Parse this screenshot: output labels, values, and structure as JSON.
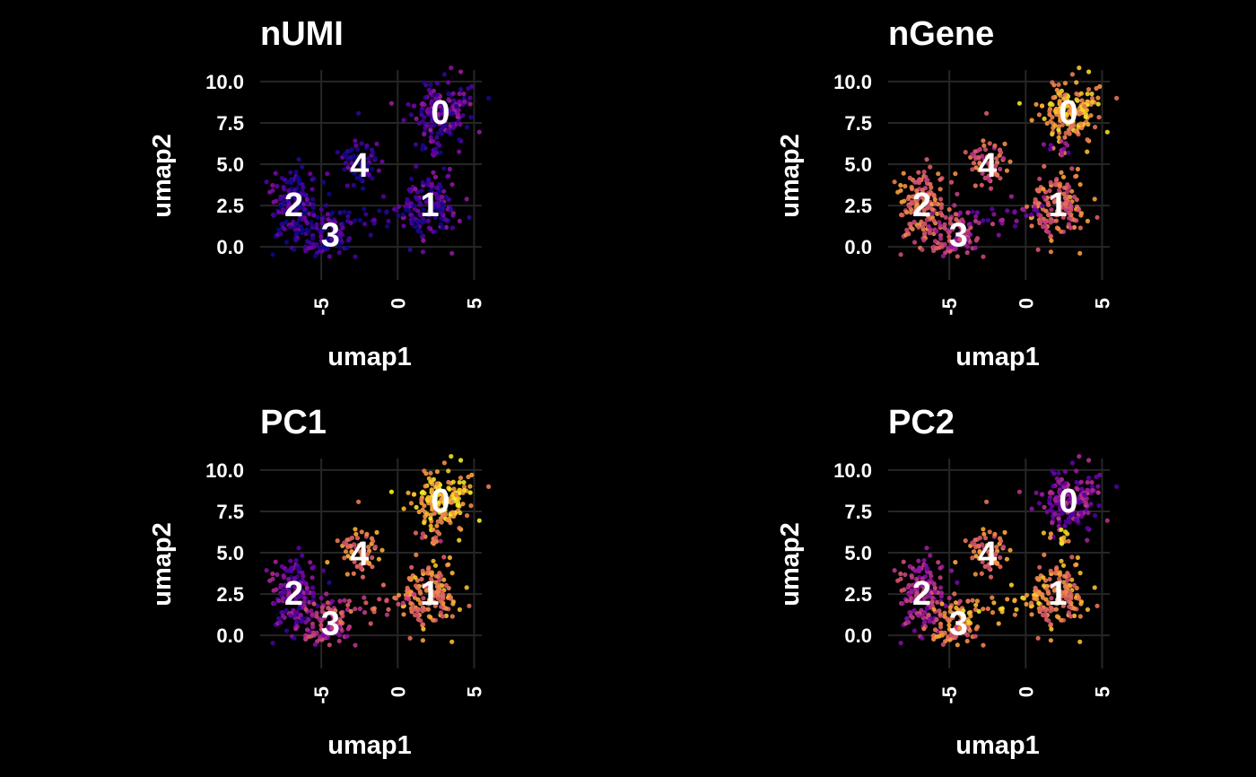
{
  "palette": [
    "#0d0887",
    "#6a00a8",
    "#b12a90",
    "#e16462",
    "#fca636",
    "#f0f921"
  ],
  "background": "#000000",
  "chart_data": [
    {
      "type": "scatter",
      "title": "nUMI",
      "xlabel": "umap1",
      "ylabel": "umap2",
      "xlim": [
        -9,
        5.5
      ],
      "ylim": [
        -2,
        10.7
      ],
      "xticks": [
        -5,
        0,
        5
      ],
      "xtick_labels": [
        "-5",
        "0",
        "5"
      ],
      "yticks": [
        0,
        2.5,
        5,
        7.5,
        10
      ],
      "ytick_labels": [
        "0.0",
        "2.5",
        "5.0",
        "7.5",
        "10.0"
      ],
      "grid": true,
      "color_scale": "plasma (dark purple = low, yellow = high)",
      "cluster_labels": [
        {
          "label": "0",
          "x": 2.8,
          "y": 8.2
        },
        {
          "label": "1",
          "x": 2.1,
          "y": 2.6
        },
        {
          "label": "2",
          "x": -6.8,
          "y": 2.6
        },
        {
          "label": "3",
          "x": -4.4,
          "y": 0.8
        },
        {
          "label": "4",
          "x": -2.5,
          "y": 5.0
        }
      ],
      "cluster_levels": {
        "0": 0.2,
        "1": 0.15,
        "2": 0.1,
        "3": 0.08,
        "4": 0.08,
        "bridge": 0.1
      }
    },
    {
      "type": "scatter",
      "title": "nGene",
      "xlabel": "umap1",
      "ylabel": "umap2",
      "xlim": [
        -9,
        5.5
      ],
      "ylim": [
        -2,
        10.7
      ],
      "xticks": [
        -5,
        0,
        5
      ],
      "xtick_labels": [
        "-5",
        "0",
        "5"
      ],
      "yticks": [
        0,
        2.5,
        5,
        7.5,
        10
      ],
      "ytick_labels": [
        "0.0",
        "2.5",
        "5.0",
        "7.5",
        "10.0"
      ],
      "grid": true,
      "color_scale": "plasma (dark purple = low, yellow = high)",
      "cluster_labels": [
        {
          "label": "0",
          "x": 2.8,
          "y": 8.2
        },
        {
          "label": "1",
          "x": 2.1,
          "y": 2.6
        },
        {
          "label": "2",
          "x": -6.8,
          "y": 2.6
        },
        {
          "label": "3",
          "x": -4.4,
          "y": 0.8
        },
        {
          "label": "4",
          "x": -2.5,
          "y": 5.0
        }
      ],
      "cluster_levels": {
        "0": 0.8,
        "1": 0.62,
        "2": 0.62,
        "3": 0.45,
        "4": 0.58,
        "bridge": 0.3
      }
    },
    {
      "type": "scatter",
      "title": "PC1",
      "xlabel": "umap1",
      "ylabel": "umap2",
      "xlim": [
        -9,
        5.5
      ],
      "ylim": [
        -2,
        10.7
      ],
      "xticks": [
        -5,
        0,
        5
      ],
      "xtick_labels": [
        "-5",
        "0",
        "5"
      ],
      "yticks": [
        0,
        2.5,
        5,
        7.5,
        10
      ],
      "ytick_labels": [
        "0.0",
        "2.5",
        "5.0",
        "7.5",
        "10.0"
      ],
      "grid": true,
      "color_scale": "plasma (dark purple = low, yellow = high)",
      "cluster_labels": [
        {
          "label": "0",
          "x": 2.8,
          "y": 8.2
        },
        {
          "label": "1",
          "x": 2.1,
          "y": 2.6
        },
        {
          "label": "2",
          "x": -6.8,
          "y": 2.6
        },
        {
          "label": "3",
          "x": -4.4,
          "y": 0.8
        },
        {
          "label": "4",
          "x": -2.5,
          "y": 5.0
        }
      ],
      "cluster_levels": {
        "0": 0.85,
        "1": 0.7,
        "2": 0.22,
        "3": 0.4,
        "4": 0.68,
        "bridge": 0.6
      }
    },
    {
      "type": "scatter",
      "title": "PC2",
      "xlabel": "umap1",
      "ylabel": "umap2",
      "xlim": [
        -9,
        5.5
      ],
      "ylim": [
        -2,
        10.7
      ],
      "xticks": [
        -5,
        0,
        5
      ],
      "xtick_labels": [
        "-5",
        "0",
        "5"
      ],
      "yticks": [
        0,
        2.5,
        5,
        7.5,
        10
      ],
      "ytick_labels": [
        "0.0",
        "2.5",
        "5.0",
        "7.5",
        "10.0"
      ],
      "grid": true,
      "color_scale": "plasma (dark purple = low, yellow = high)",
      "cluster_labels": [
        {
          "label": "0",
          "x": 2.8,
          "y": 8.2
        },
        {
          "label": "1",
          "x": 2.1,
          "y": 2.6
        },
        {
          "label": "2",
          "x": -6.8,
          "y": 2.6
        },
        {
          "label": "3",
          "x": -4.4,
          "y": 0.8
        },
        {
          "label": "4",
          "x": -2.5,
          "y": 5.0
        }
      ],
      "cluster_levels": {
        "0": 0.3,
        "1": 0.7,
        "2": 0.38,
        "3": 0.66,
        "4": 0.66,
        "bridge": 0.85
      }
    }
  ]
}
